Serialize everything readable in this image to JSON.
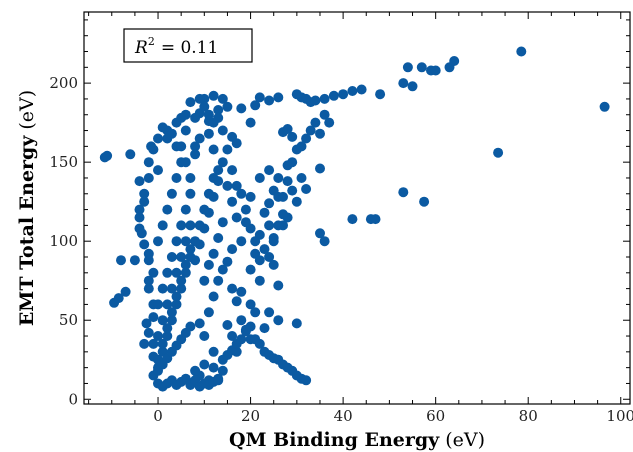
{
  "chart_data": {
    "type": "scatter",
    "xlabel_bold": "QM Binding Energy",
    "xlabel_unit": "(eV)",
    "ylabel_bold": "EMT Total Energy",
    "ylabel_unit": "(eV)",
    "xlim": [
      -16,
      102
    ],
    "ylim": [
      -3,
      245
    ],
    "xticks": [
      0,
      20,
      40,
      60,
      80,
      100
    ],
    "yticks": [
      0,
      50,
      100,
      150,
      200
    ],
    "grid": false,
    "legend": "none",
    "marker_color": "#0b5aa2",
    "annotation": {
      "lhs_symbol": "R",
      "lhs_exponent": "2",
      "rhs": "= 0.11",
      "position": "top-left"
    },
    "series": [
      {
        "points": [
          [
            -11.5,
            153
          ],
          [
            -11,
            154
          ],
          [
            -9.5,
            61
          ],
          [
            -8.5,
            64
          ],
          [
            -8,
            88
          ],
          [
            -7,
            68
          ],
          [
            -6,
            155
          ],
          [
            -5,
            88
          ],
          [
            -4,
            138
          ],
          [
            -4,
            120
          ],
          [
            -3.5,
            105
          ],
          [
            -3,
            35
          ],
          [
            -2.5,
            48
          ],
          [
            -2,
            92
          ],
          [
            -2,
            75
          ],
          [
            -1.5,
            160
          ],
          [
            0,
            145
          ],
          [
            2,
            170
          ],
          [
            4,
            160
          ],
          [
            5,
            150
          ],
          [
            6,
            170
          ],
          [
            8,
            160
          ],
          [
            9,
            181
          ],
          [
            10,
            190
          ],
          [
            11,
            176
          ],
          [
            12,
            192
          ],
          [
            13,
            183
          ],
          [
            14,
            190
          ],
          [
            15,
            185
          ],
          [
            16,
            166
          ],
          [
            17,
            162
          ],
          [
            18,
            184
          ],
          [
            20,
            175
          ],
          [
            21,
            186
          ],
          [
            22,
            191
          ],
          [
            24,
            189
          ],
          [
            26,
            191
          ],
          [
            27,
            169
          ],
          [
            28,
            171
          ],
          [
            29,
            166
          ],
          [
            30,
            193
          ],
          [
            31,
            191
          ],
          [
            32,
            190
          ],
          [
            33,
            188
          ],
          [
            34,
            189
          ],
          [
            36,
            190
          ],
          [
            38,
            192
          ],
          [
            40,
            193
          ],
          [
            42,
            195
          ],
          [
            44,
            196
          ],
          [
            48,
            193
          ],
          [
            53,
            200
          ],
          [
            54,
            210
          ],
          [
            55,
            198
          ],
          [
            57,
            210
          ],
          [
            59,
            208
          ],
          [
            60,
            208
          ],
          [
            63,
            210
          ],
          [
            64,
            214
          ],
          [
            78.5,
            220
          ],
          [
            96.5,
            185
          ],
          [
            73.5,
            156
          ],
          [
            53,
            131
          ],
          [
            57.5,
            125
          ],
          [
            42,
            114
          ],
          [
            46,
            114
          ],
          [
            47,
            114
          ],
          [
            35,
            105
          ],
          [
            36,
            100
          ],
          [
            25,
            102
          ],
          [
            27,
            110
          ],
          [
            28,
            115
          ],
          [
            30,
            125
          ],
          [
            31,
            140
          ],
          [
            32,
            133
          ],
          [
            35,
            146
          ],
          [
            22,
            140
          ],
          [
            24,
            145
          ],
          [
            26,
            128
          ],
          [
            27,
            117
          ],
          [
            19,
            120
          ],
          [
            20,
            128
          ],
          [
            17,
            115
          ],
          [
            18,
            100
          ],
          [
            16,
            95
          ],
          [
            15,
            87
          ],
          [
            14,
            82
          ],
          [
            13,
            75
          ],
          [
            22,
            75
          ],
          [
            24,
            90
          ],
          [
            25,
            85
          ],
          [
            26,
            72
          ],
          [
            20,
            60
          ],
          [
            21,
            55
          ],
          [
            18,
            50
          ],
          [
            19,
            44
          ],
          [
            16,
            40
          ],
          [
            15,
            47
          ],
          [
            17,
            30
          ],
          [
            14,
            25
          ],
          [
            30,
            48
          ],
          [
            26,
            50
          ],
          [
            24,
            55
          ],
          [
            23,
            45
          ],
          [
            20,
            38
          ],
          [
            12,
            20
          ],
          [
            11,
            12
          ],
          [
            10,
            22
          ],
          [
            9,
            15
          ],
          [
            13,
            13
          ],
          [
            8,
            18
          ],
          [
            12,
            30
          ],
          [
            10,
            40
          ],
          [
            9,
            48
          ],
          [
            11,
            55
          ],
          [
            12,
            65
          ],
          [
            10,
            75
          ],
          [
            8,
            88
          ],
          [
            9,
            98
          ],
          [
            10,
            108
          ],
          [
            11,
            118
          ],
          [
            12,
            128
          ],
          [
            13,
            138
          ],
          [
            14,
            150
          ],
          [
            8,
            155
          ],
          [
            9,
            165
          ],
          [
            11,
            168
          ],
          [
            12,
            158
          ],
          [
            13,
            145
          ],
          [
            15,
            135
          ],
          [
            16,
            125
          ],
          [
            14,
            112
          ],
          [
            13,
            102
          ],
          [
            12,
            92
          ],
          [
            11,
            85
          ],
          [
            16,
            70
          ],
          [
            17,
            62
          ],
          [
            18,
            68
          ],
          [
            20,
            82
          ],
          [
            21,
            92
          ],
          [
            22,
            104
          ],
          [
            23,
            118
          ],
          [
            24,
            124
          ],
          [
            25,
            132
          ],
          [
            26,
            140
          ],
          [
            28,
            148
          ],
          [
            29,
            150
          ],
          [
            30,
            158
          ],
          [
            32,
            165
          ],
          [
            33,
            170
          ],
          [
            34,
            175
          ],
          [
            36,
            180
          ],
          [
            35,
            168
          ],
          [
            37,
            175
          ],
          [
            31,
            160
          ],
          [
            29,
            132
          ],
          [
            28,
            138
          ],
          [
            27,
            128
          ],
          [
            26,
            110
          ],
          [
            25,
            100
          ],
          [
            24,
            110
          ],
          [
            23,
            95
          ],
          [
            22,
            88
          ],
          [
            21,
            100
          ],
          [
            20,
            108
          ],
          [
            19,
            112
          ],
          [
            18,
            130
          ],
          [
            17,
            135
          ],
          [
            16,
            145
          ],
          [
            15,
            158
          ],
          [
            14,
            170
          ],
          [
            13,
            178
          ],
          [
            12,
            175
          ],
          [
            11,
            180
          ],
          [
            10,
            185
          ],
          [
            9,
            190
          ],
          [
            8,
            178
          ],
          [
            7,
            188
          ],
          [
            6,
            180
          ],
          [
            5,
            178
          ],
          [
            4,
            175
          ],
          [
            3,
            168
          ],
          [
            2,
            165
          ],
          [
            1,
            172
          ],
          [
            0,
            165
          ],
          [
            -1,
            158
          ],
          [
            -2,
            150
          ],
          [
            -2,
            140
          ],
          [
            -3,
            130
          ],
          [
            -3,
            125
          ],
          [
            -4,
            115
          ],
          [
            -4,
            108
          ],
          [
            -3,
            98
          ],
          [
            -2,
            88
          ],
          [
            -1,
            80
          ],
          [
            -2,
            70
          ],
          [
            -1,
            60
          ],
          [
            -1,
            52
          ],
          [
            -2,
            42
          ],
          [
            -1,
            35
          ],
          [
            -1,
            27
          ],
          [
            0,
            20
          ],
          [
            -1,
            15
          ],
          [
            0,
            10
          ],
          [
            1,
            8
          ],
          [
            2,
            10
          ],
          [
            3,
            12
          ],
          [
            4,
            9
          ],
          [
            5,
            11
          ],
          [
            6,
            13
          ],
          [
            7,
            9
          ],
          [
            8,
            12
          ],
          [
            9,
            8
          ],
          [
            10,
            10
          ],
          [
            11,
            9
          ],
          [
            12,
            11
          ],
          [
            13,
            12
          ],
          [
            14,
            18
          ],
          [
            15,
            28
          ],
          [
            16,
            31
          ],
          [
            17,
            35
          ],
          [
            18,
            38
          ],
          [
            19,
            43
          ],
          [
            20,
            46
          ],
          [
            21,
            38
          ],
          [
            22,
            35
          ],
          [
            23,
            30
          ],
          [
            24,
            28
          ],
          [
            25,
            26
          ],
          [
            26,
            25
          ],
          [
            27,
            22
          ],
          [
            28,
            20
          ],
          [
            29,
            18
          ],
          [
            30,
            15
          ],
          [
            31,
            13
          ],
          [
            32,
            12
          ],
          [
            1,
            30
          ],
          [
            2,
            40
          ],
          [
            3,
            50
          ],
          [
            4,
            60
          ],
          [
            5,
            70
          ],
          [
            6,
            80
          ],
          [
            7,
            90
          ],
          [
            8,
            100
          ],
          [
            9,
            110
          ],
          [
            10,
            120
          ],
          [
            11,
            130
          ],
          [
            12,
            140
          ],
          [
            0,
            100
          ],
          [
            1,
            110
          ],
          [
            2,
            120
          ],
          [
            3,
            130
          ],
          [
            4,
            140
          ],
          [
            5,
            160
          ],
          [
            6,
            150
          ],
          [
            7,
            140
          ],
          [
            0,
            60
          ],
          [
            1,
            70
          ],
          [
            2,
            80
          ],
          [
            3,
            90
          ],
          [
            4,
            100
          ],
          [
            5,
            110
          ],
          [
            6,
            120
          ],
          [
            7,
            130
          ],
          [
            0,
            40
          ],
          [
            1,
            50
          ],
          [
            2,
            60
          ],
          [
            3,
            70
          ],
          [
            4,
            80
          ],
          [
            5,
            90
          ],
          [
            6,
            100
          ],
          [
            7,
            110
          ],
          [
            0,
            25
          ],
          [
            1,
            35
          ],
          [
            2,
            45
          ],
          [
            3,
            55
          ],
          [
            4,
            65
          ],
          [
            5,
            75
          ],
          [
            6,
            85
          ],
          [
            7,
            95
          ],
          [
            0,
            18
          ],
          [
            1,
            22
          ],
          [
            2,
            26
          ],
          [
            3,
            30
          ],
          [
            4,
            34
          ],
          [
            5,
            38
          ],
          [
            6,
            42
          ],
          [
            7,
            46
          ]
        ]
      }
    ]
  }
}
